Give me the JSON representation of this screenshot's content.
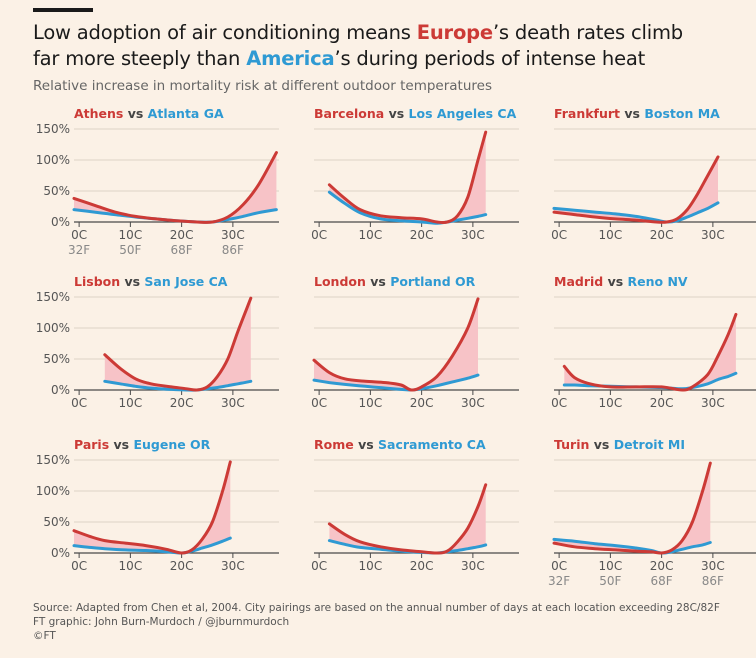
{
  "header": {
    "title_line1_pre": "Low adoption of air conditioning means ",
    "title_europe": "Europe",
    "title_line1_post": "’s death rates climb",
    "title_line2_pre": "far more steeply than ",
    "title_america": "America",
    "title_line2_post": "’s during periods of intense heat",
    "subtitle": "Relative increase in mortality risk at different outdoor temperatures"
  },
  "footer": {
    "source": "Source: Adapted from Chen et al, 2004. City pairings are based on the annual number of days at each location exceeding 28C/82F",
    "credit": "FT graphic: John Burn-Murdoch / @jburnmurdoch",
    "copyright": "©FT"
  },
  "colors": {
    "europe": "#cc3a36",
    "america": "#2f9ad3",
    "gap_fill": "#f7c3c7",
    "background": "#fbf1e6",
    "grid": "#dcd2c6",
    "axis": "#4a4a4a"
  },
  "chart_data": [
    {
      "type": "line",
      "europe_city": "Athens",
      "us_city": "Atlanta GA",
      "vs_label": "vs",
      "xlim": [
        -1,
        39
      ],
      "ylim": [
        0,
        150
      ],
      "y_ticks": [
        0,
        50,
        100,
        150
      ],
      "y_tick_labels": [
        "0%",
        "50%",
        "100%",
        "150%"
      ],
      "x_ticks": [
        0,
        10,
        20,
        30
      ],
      "x_tick_labels": [
        "0C",
        "10C",
        "20C",
        "30C"
      ],
      "x_tick_labels_f": [
        "32F",
        "50F",
        "68F",
        "86F"
      ],
      "series": [
        {
          "name": "Athens",
          "color": "#cc3a36",
          "x": [
            -1,
            3,
            7,
            11,
            15,
            19,
            23,
            26,
            29,
            32,
            35,
            38.5
          ],
          "y": [
            38,
            27,
            16,
            9,
            5,
            2,
            0,
            0,
            8,
            28,
            60,
            112
          ]
        },
        {
          "name": "Atlanta GA",
          "color": "#2f9ad3",
          "x": [
            -1,
            3,
            7,
            11,
            15,
            19,
            23,
            26,
            29,
            32,
            35,
            38.5
          ],
          "y": [
            20,
            16,
            12,
            8,
            5,
            2,
            0,
            0,
            4,
            9,
            15,
            20
          ]
        }
      ]
    },
    {
      "type": "line",
      "europe_city": "Barcelona",
      "us_city": "Los Angeles CA",
      "vs_label": "vs",
      "xlim": [
        -1,
        39
      ],
      "ylim": [
        0,
        150
      ],
      "y_ticks": [
        0,
        50,
        100,
        150
      ],
      "y_tick_labels": [],
      "x_ticks": [
        0,
        10,
        20,
        30
      ],
      "x_tick_labels": [
        "0C",
        "10C",
        "20C",
        "30C"
      ],
      "x_tick_labels_f": [],
      "series": [
        {
          "name": "Barcelona",
          "color": "#cc3a36",
          "x": [
            2,
            5,
            8,
            12,
            16,
            20,
            23,
            25,
            27,
            29,
            31,
            32.5
          ],
          "y": [
            60,
            38,
            20,
            10,
            7,
            5,
            0,
            0,
            10,
            40,
            100,
            145
          ]
        },
        {
          "name": "Los Angeles CA",
          "color": "#2f9ad3",
          "x": [
            2,
            5,
            8,
            12,
            16,
            20,
            23,
            25,
            27,
            29,
            31,
            32.5
          ],
          "y": [
            48,
            30,
            15,
            5,
            2,
            0,
            -2,
            0,
            3,
            6,
            9,
            12
          ]
        }
      ]
    },
    {
      "type": "line",
      "europe_city": "Frankfurt",
      "us_city": "Boston MA",
      "vs_label": "vs",
      "xlim": [
        -1,
        39
      ],
      "ylim": [
        0,
        150
      ],
      "y_ticks": [
        0,
        50,
        100,
        150
      ],
      "y_tick_labels": [],
      "x_ticks": [
        0,
        10,
        20,
        30
      ],
      "x_tick_labels": [
        "0C",
        "10C",
        "20C",
        "30C"
      ],
      "x_tick_labels_f": [],
      "series": [
        {
          "name": "Frankfurt",
          "color": "#cc3a36",
          "x": [
            -1,
            3,
            7,
            11,
            15,
            19,
            21,
            23,
            25,
            27,
            29,
            31
          ],
          "y": [
            16,
            12,
            8,
            5,
            3,
            0,
            0,
            5,
            20,
            45,
            75,
            105
          ]
        },
        {
          "name": "Boston MA",
          "color": "#2f9ad3",
          "x": [
            -1,
            3,
            7,
            11,
            15,
            19,
            21,
            23,
            25,
            27,
            29,
            31
          ],
          "y": [
            22,
            19,
            16,
            13,
            9,
            3,
            0,
            2,
            8,
            15,
            22,
            31
          ]
        }
      ]
    },
    {
      "type": "line",
      "europe_city": "Lisbon",
      "us_city": "San Jose CA",
      "vs_label": "vs",
      "xlim": [
        -1,
        39
      ],
      "ylim": [
        0,
        150
      ],
      "y_ticks": [
        0,
        50,
        100,
        150
      ],
      "y_tick_labels": [
        "0%",
        "50%",
        "100%",
        "150%"
      ],
      "x_ticks": [
        0,
        10,
        20,
        30
      ],
      "x_tick_labels": [
        "0C",
        "10C",
        "20C",
        "30C"
      ],
      "x_tick_labels_f": [],
      "series": [
        {
          "name": "Lisbon",
          "color": "#cc3a36",
          "x": [
            5,
            8,
            11,
            14,
            18,
            21,
            23,
            25,
            27,
            29,
            31,
            33.5
          ],
          "y": [
            57,
            35,
            18,
            10,
            5,
            2,
            0,
            5,
            22,
            50,
            95,
            148
          ]
        },
        {
          "name": "San Jose CA",
          "color": "#2f9ad3",
          "x": [
            5,
            8,
            11,
            14,
            18,
            21,
            23,
            25,
            27,
            29,
            31,
            33.5
          ],
          "y": [
            14,
            10,
            6,
            3,
            1,
            0,
            0,
            2,
            4,
            7,
            10,
            14
          ]
        }
      ]
    },
    {
      "type": "line",
      "europe_city": "London",
      "us_city": "Portland OR",
      "vs_label": "vs",
      "xlim": [
        -1,
        39
      ],
      "ylim": [
        0,
        150
      ],
      "y_ticks": [
        0,
        50,
        100,
        150
      ],
      "y_tick_labels": [],
      "x_ticks": [
        0,
        10,
        20,
        30
      ],
      "x_tick_labels": [
        "0C",
        "10C",
        "20C",
        "30C"
      ],
      "x_tick_labels_f": [],
      "series": [
        {
          "name": "London",
          "color": "#cc3a36",
          "x": [
            -1,
            2,
            5,
            9,
            13,
            16,
            18,
            20,
            23,
            26,
            29,
            31
          ],
          "y": [
            48,
            28,
            18,
            14,
            12,
            8,
            0,
            5,
            22,
            55,
            100,
            147
          ]
        },
        {
          "name": "Portland OR",
          "color": "#2f9ad3",
          "x": [
            -1,
            2,
            5,
            9,
            13,
            16,
            18,
            20,
            23,
            26,
            29,
            31
          ],
          "y": [
            16,
            12,
            9,
            6,
            3,
            1,
            0,
            2,
            7,
            13,
            19,
            24
          ]
        }
      ]
    },
    {
      "type": "line",
      "europe_city": "Madrid",
      "us_city": "Reno NV",
      "vs_label": "vs",
      "xlim": [
        -1,
        39
      ],
      "ylim": [
        0,
        150
      ],
      "y_ticks": [
        0,
        50,
        100,
        150
      ],
      "y_tick_labels": [],
      "x_ticks": [
        0,
        10,
        20,
        30
      ],
      "x_tick_labels": [
        "0C",
        "10C",
        "20C",
        "30C"
      ],
      "x_tick_labels_f": [],
      "series": [
        {
          "name": "Madrid",
          "color": "#cc3a36",
          "x": [
            1,
            3,
            6,
            10,
            15,
            20,
            24,
            26,
            29,
            31,
            33,
            34.5
          ],
          "y": [
            38,
            20,
            10,
            5,
            5,
            5,
            0,
            5,
            25,
            55,
            90,
            122
          ]
        },
        {
          "name": "Reno NV",
          "color": "#2f9ad3",
          "x": [
            1,
            3,
            6,
            10,
            15,
            20,
            24,
            26,
            29,
            31,
            33,
            34.5
          ],
          "y": [
            8,
            8,
            7,
            6,
            5,
            4,
            2,
            4,
            10,
            17,
            22,
            27
          ]
        }
      ]
    },
    {
      "type": "line",
      "europe_city": "Paris",
      "us_city": "Eugene OR",
      "vs_label": "vs",
      "xlim": [
        -1,
        39
      ],
      "ylim": [
        0,
        150
      ],
      "y_ticks": [
        0,
        50,
        100,
        150
      ],
      "y_tick_labels": [
        "0%",
        "50%",
        "100%",
        "150%"
      ],
      "x_ticks": [
        0,
        10,
        20,
        30
      ],
      "x_tick_labels": [
        "0C",
        "10C",
        "20C",
        "30C"
      ],
      "x_tick_labels_f": [],
      "series": [
        {
          "name": "Paris",
          "color": "#cc3a36",
          "x": [
            -1,
            2,
            5,
            9,
            13,
            17,
            20,
            22,
            24,
            26,
            28,
            29.5
          ],
          "y": [
            36,
            27,
            20,
            16,
            12,
            6,
            0,
            5,
            22,
            50,
            100,
            147
          ]
        },
        {
          "name": "Eugene OR",
          "color": "#2f9ad3",
          "x": [
            -1,
            2,
            5,
            9,
            13,
            17,
            20,
            22,
            24,
            26,
            28,
            29.5
          ],
          "y": [
            12,
            9,
            7,
            5,
            4,
            2,
            0,
            3,
            8,
            13,
            19,
            24
          ]
        }
      ]
    },
    {
      "type": "line",
      "europe_city": "Rome",
      "us_city": "Sacramento CA",
      "vs_label": "vs",
      "xlim": [
        -1,
        39
      ],
      "ylim": [
        0,
        150
      ],
      "y_ticks": [
        0,
        50,
        100,
        150
      ],
      "y_tick_labels": [],
      "x_ticks": [
        0,
        10,
        20,
        30
      ],
      "x_tick_labels": [
        "0C",
        "10C",
        "20C",
        "30C"
      ],
      "x_tick_labels_f": [],
      "series": [
        {
          "name": "Rome",
          "color": "#cc3a36",
          "x": [
            2,
            5,
            8,
            12,
            16,
            20,
            23,
            25,
            27,
            29,
            31,
            32.5
          ],
          "y": [
            47,
            30,
            18,
            10,
            5,
            2,
            0,
            3,
            18,
            40,
            75,
            110
          ]
        },
        {
          "name": "Sacramento CA",
          "color": "#2f9ad3",
          "x": [
            2,
            5,
            8,
            12,
            16,
            20,
            23,
            25,
            27,
            29,
            31,
            32.5
          ],
          "y": [
            20,
            14,
            9,
            6,
            3,
            1,
            0,
            2,
            4,
            7,
            10,
            13
          ]
        }
      ]
    },
    {
      "type": "line",
      "europe_city": "Turin",
      "us_city": "Detroit MI",
      "vs_label": "vs",
      "xlim": [
        -1,
        39
      ],
      "ylim": [
        0,
        150
      ],
      "y_ticks": [
        0,
        50,
        100,
        150
      ],
      "y_tick_labels": [],
      "x_ticks": [
        0,
        10,
        20,
        30
      ],
      "x_tick_labels": [
        "0C",
        "10C",
        "20C",
        "30C"
      ],
      "x_tick_labels_f": [
        "32F",
        "50F",
        "68F",
        "86F"
      ],
      "series": [
        {
          "name": "Turin",
          "color": "#cc3a36",
          "x": [
            -1,
            3,
            7,
            11,
            15,
            18,
            20,
            22,
            24,
            26,
            28,
            29.5
          ],
          "y": [
            16,
            10,
            7,
            5,
            3,
            2,
            0,
            5,
            20,
            50,
            100,
            145
          ]
        },
        {
          "name": "Detroit MI",
          "color": "#2f9ad3",
          "x": [
            -1,
            3,
            7,
            11,
            15,
            18,
            20,
            22,
            24,
            26,
            28,
            29.5
          ],
          "y": [
            22,
            19,
            15,
            12,
            8,
            4,
            0,
            2,
            6,
            10,
            13,
            17
          ]
        }
      ]
    }
  ]
}
